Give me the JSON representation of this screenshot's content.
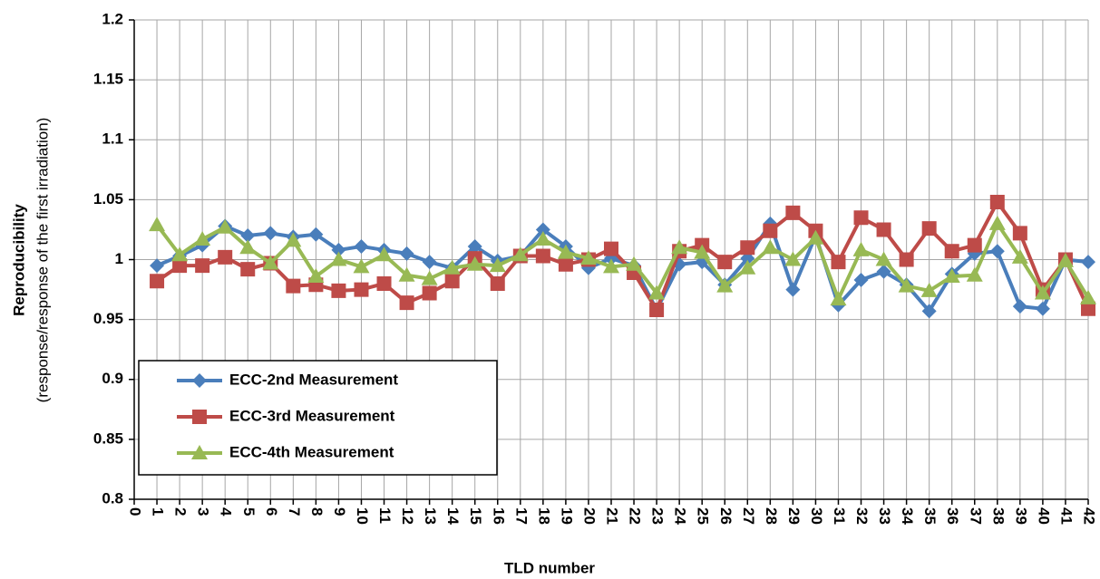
{
  "chart_data": {
    "type": "line",
    "xlabel": "TLD number",
    "ylabel": "Reproducibility",
    "ylabel_note": "(response/response of the first irradiation)",
    "x": [
      1,
      2,
      3,
      4,
      5,
      6,
      7,
      8,
      9,
      10,
      11,
      12,
      13,
      14,
      15,
      16,
      17,
      18,
      19,
      20,
      21,
      22,
      23,
      24,
      25,
      26,
      27,
      28,
      29,
      30,
      31,
      32,
      33,
      34,
      35,
      36,
      37,
      38,
      39,
      40,
      41,
      42
    ],
    "series": [
      {
        "name": "ECC-2nd Measurement",
        "color": "#4a7ebb",
        "marker": "diamond",
        "values": [
          0.995,
          1.003,
          1.012,
          1.028,
          1.02,
          1.022,
          1.019,
          1.021,
          1.008,
          1.011,
          1.008,
          1.005,
          0.998,
          0.993,
          1.011,
          0.999,
          1.003,
          1.025,
          1.011,
          0.993,
          1.001,
          0.995,
          0.958,
          0.996,
          0.998,
          0.979,
          1.001,
          1.03,
          0.975,
          1.02,
          0.962,
          0.983,
          0.99,
          0.979,
          0.957,
          0.988,
          1.005,
          1.007,
          0.961,
          0.959,
          1.0,
          0.998
        ]
      },
      {
        "name": "ECC-3rd Measurement",
        "color": "#be4b48",
        "marker": "square",
        "values": [
          0.982,
          0.995,
          0.995,
          1.002,
          0.992,
          0.997,
          0.978,
          0.979,
          0.974,
          0.975,
          0.98,
          0.964,
          0.972,
          0.982,
          1.001,
          0.98,
          1.003,
          1.003,
          0.996,
          1.0,
          1.009,
          0.989,
          0.958,
          1.007,
          1.012,
          0.998,
          1.01,
          1.024,
          1.039,
          1.024,
          0.998,
          1.035,
          1.025,
          1.0,
          1.026,
          1.007,
          1.012,
          1.048,
          1.022,
          0.975,
          1.0,
          0.959
        ]
      },
      {
        "name": "ECC-4th Measurement",
        "color": "#98b954",
        "marker": "triangle",
        "values": [
          1.029,
          1.004,
          1.017,
          1.027,
          1.01,
          0.997,
          1.016,
          0.986,
          1.0,
          0.994,
          1.004,
          0.987,
          0.984,
          0.993,
          0.996,
          0.995,
          1.004,
          1.017,
          1.006,
          1.001,
          0.994,
          0.996,
          0.972,
          1.01,
          1.006,
          0.978,
          0.993,
          1.01,
          1.0,
          1.018,
          0.967,
          1.008,
          1.0,
          0.978,
          0.974,
          0.986,
          0.987,
          1.03,
          1.002,
          0.972,
          0.999,
          0.968
        ]
      }
    ],
    "xlim": [
      0,
      42
    ],
    "xticks": [
      0,
      1,
      2,
      3,
      4,
      5,
      6,
      7,
      8,
      9,
      10,
      11,
      12,
      13,
      14,
      15,
      16,
      17,
      18,
      19,
      20,
      21,
      22,
      23,
      24,
      25,
      26,
      27,
      28,
      29,
      30,
      31,
      32,
      33,
      34,
      35,
      36,
      37,
      38,
      39,
      40,
      41,
      42
    ],
    "ylim": [
      0.8,
      1.2
    ],
    "yticks": [
      0.8,
      0.85,
      0.9,
      0.95,
      1,
      1.05,
      1.1,
      1.15,
      1.2
    ],
    "grid": true,
    "legend": "lower left"
  }
}
